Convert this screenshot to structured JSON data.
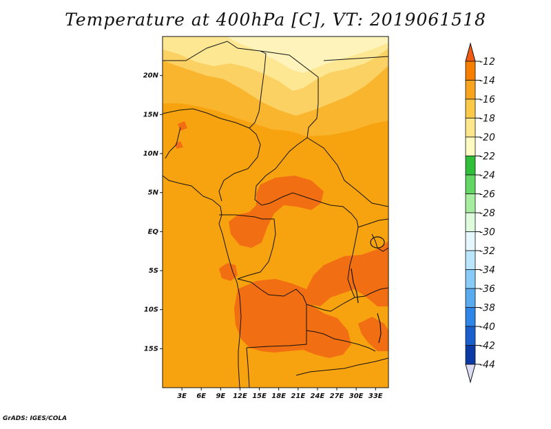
{
  "title": "Temperature at 400hPa [C], VT: 2019061518",
  "footer": "GrADS: IGES/COLA",
  "chart_data": {
    "type": "heatmap",
    "variable": "Temperature at 400hPa",
    "units": "C",
    "valid_time": "2019061518",
    "lon_range": [
      0,
      35
    ],
    "lat_range": [
      -20,
      25
    ],
    "x_ticks": [
      "3E",
      "6E",
      "9E",
      "12E",
      "15E",
      "18E",
      "21E",
      "24E",
      "27E",
      "30E",
      "33E"
    ],
    "x_tick_values": [
      3,
      6,
      9,
      12,
      15,
      18,
      21,
      24,
      27,
      30,
      33
    ],
    "y_ticks": [
      "20N",
      "15N",
      "10N",
      "5N",
      "EQ",
      "5S",
      "10S",
      "15S"
    ],
    "y_tick_values": [
      20,
      15,
      10,
      5,
      0,
      -5,
      -10,
      -15
    ],
    "colorbar": {
      "labels": [
        "-12",
        "-14",
        "-16",
        "-18",
        "-20",
        "-22",
        "-24",
        "-26",
        "-28",
        "-30",
        "-32",
        "-34",
        "-36",
        "-38",
        "-40",
        "-42",
        "-44"
      ],
      "colors": [
        "#f05a14",
        "#f77f00",
        "#f9a41e",
        "#fbc94a",
        "#fde68c",
        "#fdfac2",
        "#2fbf3a",
        "#63d664",
        "#a6eda0",
        "#dffbde",
        "#e6f8fe",
        "#b9e6fc",
        "#88cbf7",
        "#5aaaf0",
        "#2e86e6",
        "#1a5fcc",
        "#0c3aa5",
        "#0a1f78",
        "#dcdcf4"
      ]
    }
  }
}
